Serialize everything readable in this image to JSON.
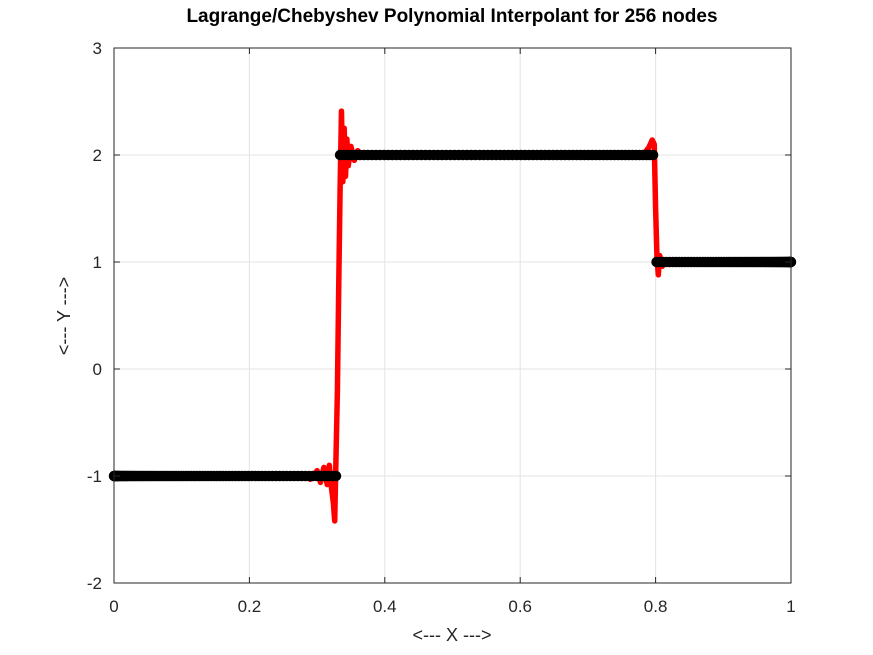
{
  "chart_data": {
    "type": "line",
    "title": "Lagrange/Chebyshev Polynomial Interpolant for 256 nodes",
    "xlabel": "<--- X --->",
    "ylabel": "<--- Y --->",
    "xlim": [
      0,
      1
    ],
    "ylim": [
      -2,
      3
    ],
    "xticks": [
      "0",
      "0.2",
      "0.4",
      "0.6",
      "0.8",
      "1"
    ],
    "xtick_values": [
      0,
      0.2,
      0.4,
      0.6,
      0.8,
      1
    ],
    "yticks": [
      "-2",
      "-1",
      "0",
      "1",
      "2",
      "3"
    ],
    "ytick_values": [
      -2,
      -1,
      0,
      1,
      2,
      3
    ],
    "grid": true,
    "series": [
      {
        "role": "interpolant",
        "color": "#ff0000",
        "style": "line",
        "x": [
          0.0,
          0.28,
          0.29,
          0.3,
          0.305,
          0.31,
          0.315,
          0.318,
          0.321,
          0.324,
          0.326,
          0.328,
          0.33,
          0.332,
          0.334,
          0.336,
          0.338,
          0.34,
          0.342,
          0.344,
          0.346,
          0.35,
          0.355,
          0.36,
          0.37,
          0.38,
          0.4,
          0.6,
          0.78,
          0.785,
          0.79,
          0.795,
          0.798,
          0.8,
          0.802,
          0.804,
          0.806,
          0.81,
          0.815,
          0.82,
          1.0
        ],
        "y": [
          -1.0,
          -1.0,
          -1.03,
          -0.95,
          -1.06,
          -0.92,
          -1.08,
          -0.9,
          -1.1,
          -1.25,
          -1.42,
          -0.8,
          -0.2,
          0.8,
          1.7,
          2.41,
          1.75,
          2.25,
          1.8,
          2.15,
          1.9,
          2.08,
          1.95,
          2.04,
          1.98,
          2.01,
          2.0,
          2.0,
          2.0,
          2.03,
          2.07,
          2.14,
          2.1,
          1.5,
          1.05,
          0.88,
          1.06,
          0.96,
          1.02,
          1.0,
          1.0
        ]
      },
      {
        "role": "nodes",
        "color": "#000000",
        "style": "markers",
        "segments": [
          {
            "x_range": [
              0.0,
              0.333
            ],
            "y": -1
          },
          {
            "x_range": [
              0.333,
              0.8
            ],
            "y": 2
          },
          {
            "x_range": [
              0.8,
              1.0
            ],
            "y": 1
          }
        ],
        "count": 256
      }
    ]
  }
}
